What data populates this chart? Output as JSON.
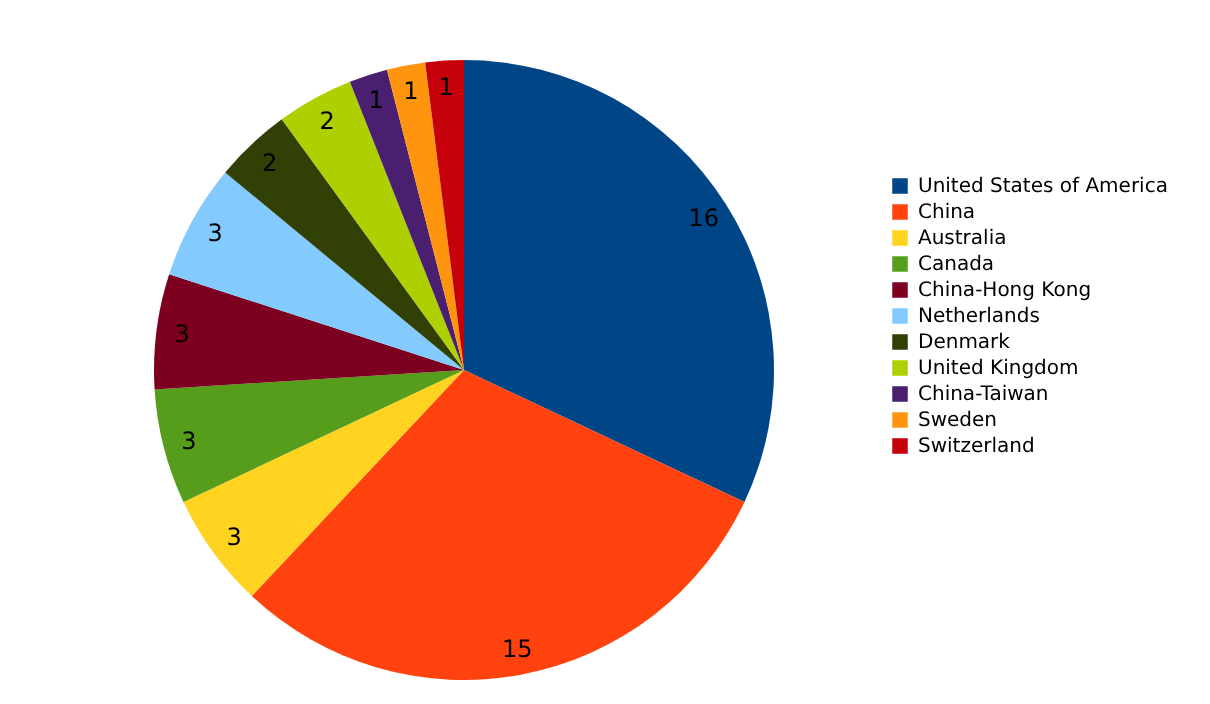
{
  "chart_data": {
    "type": "pie",
    "categories": [
      "United States of America",
      "China",
      "Australia",
      "Canada",
      "China-Hong Kong",
      "Netherlands",
      "Denmark",
      "United Kingdom",
      "China-Taiwan",
      "Sweden",
      "Switzerland"
    ],
    "values": [
      16,
      15,
      3,
      3,
      3,
      3,
      2,
      2,
      1,
      1,
      1
    ],
    "colors": [
      "#004586",
      "#ff420e",
      "#ffd320",
      "#579d1c",
      "#7e0021",
      "#83caff",
      "#314004",
      "#aecf00",
      "#4b1f6f",
      "#ff950e",
      "#c5000b"
    ],
    "data_labels": true,
    "legend": "right"
  }
}
